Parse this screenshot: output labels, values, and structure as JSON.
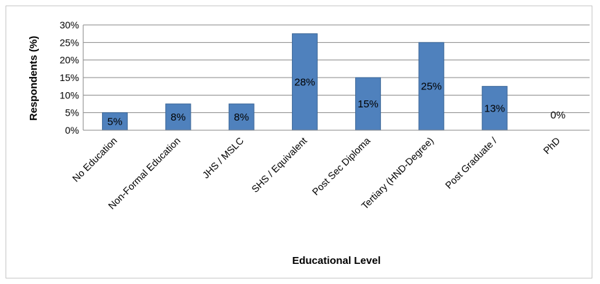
{
  "chart_data": {
    "type": "bar",
    "title": "",
    "xlabel": "Educational Level",
    "ylabel": "Respondents (%)",
    "ylim": [
      0,
      30
    ],
    "yticks": [
      0,
      5,
      10,
      15,
      20,
      25,
      30
    ],
    "ytick_labels": [
      "0%",
      "5%",
      "10%",
      "15%",
      "20%",
      "25%",
      "30%"
    ],
    "grid": true,
    "categories": [
      "No Education",
      "Non-Formal Education",
      "JHS / MSLC",
      "SHS / Equivalent",
      "Post Sec Diploma",
      "Tertiary (HND-Degree)",
      "Post Graduate /",
      "PhD"
    ],
    "values": [
      5,
      7.5,
      7.5,
      27.5,
      15,
      25,
      12.5,
      0
    ],
    "data_labels": [
      "5%",
      "8%",
      "8%",
      "28%",
      "15%",
      "25%",
      "13%",
      "0%"
    ],
    "bar_color": "#4f81bd",
    "bar_border": "#3a6596"
  }
}
